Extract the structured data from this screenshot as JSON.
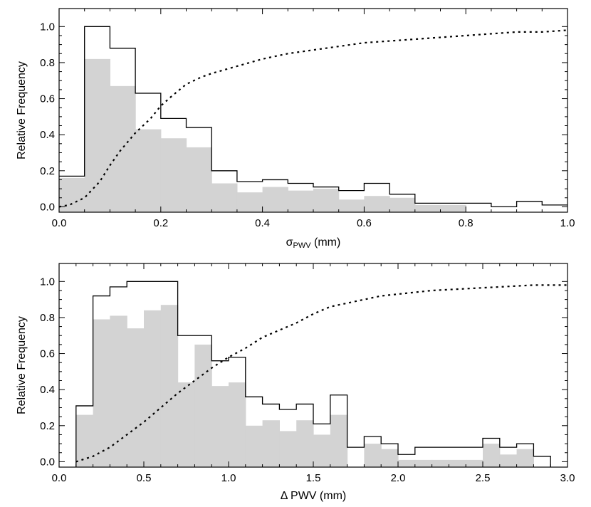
{
  "colors": {
    "fill": "#d3d3d3",
    "line": "#000000",
    "background": "#ffffff"
  },
  "chart_data": [
    {
      "type": "histogram",
      "xlabel": {
        "main": "σ",
        "sub": "PWV",
        "unit": "(mm)"
      },
      "ylabel": "Relative Frequency",
      "xlim": [
        0.0,
        1.0
      ],
      "ylim": [
        -0.03,
        1.1
      ],
      "xticks": [
        "0.0",
        "0.2",
        "0.4",
        "0.6",
        "0.8",
        "1.0"
      ],
      "yticks": [
        "0.0",
        "0.2",
        "0.4",
        "0.6",
        "0.8",
        "1.0"
      ],
      "bin_edges": [
        0.0,
        0.05,
        0.1,
        0.15,
        0.2,
        0.25,
        0.3,
        0.35,
        0.4,
        0.45,
        0.5,
        0.55,
        0.6,
        0.65,
        0.7,
        0.75,
        0.8,
        0.85,
        0.9,
        0.95,
        1.0
      ],
      "series": [
        {
          "style": "outline",
          "values": [
            0.17,
            1.0,
            0.88,
            0.63,
            0.49,
            0.44,
            0.2,
            0.14,
            0.15,
            0.13,
            0.11,
            0.09,
            0.13,
            0.07,
            0.02,
            0.02,
            0.02,
            0.0,
            0.03,
            0.01
          ]
        },
        {
          "style": "filled",
          "values": [
            0.16,
            0.82,
            0.67,
            0.43,
            0.38,
            0.33,
            0.13,
            0.08,
            0.11,
            0.09,
            0.1,
            0.04,
            0.06,
            0.05,
            0.01,
            0.01,
            0.0,
            0.0,
            0.0,
            0.0
          ]
        }
      ],
      "cumulative": {
        "style": "dotted",
        "x": [
          0.0,
          0.02,
          0.05,
          0.08,
          0.1,
          0.12,
          0.15,
          0.18,
          0.2,
          0.22,
          0.25,
          0.28,
          0.3,
          0.35,
          0.4,
          0.45,
          0.5,
          0.55,
          0.6,
          0.65,
          0.7,
          0.75,
          0.8,
          0.85,
          0.9,
          0.95,
          1.0
        ],
        "y": [
          0.0,
          0.01,
          0.05,
          0.14,
          0.23,
          0.31,
          0.41,
          0.49,
          0.56,
          0.61,
          0.68,
          0.72,
          0.74,
          0.78,
          0.82,
          0.85,
          0.87,
          0.89,
          0.91,
          0.92,
          0.93,
          0.94,
          0.95,
          0.96,
          0.97,
          0.97,
          0.98
        ]
      }
    },
    {
      "type": "histogram",
      "xlabel": {
        "main": "Δ PWV",
        "sub": "",
        "unit": "(mm)"
      },
      "ylabel": "Relative Frequency",
      "xlim": [
        0.0,
        3.0
      ],
      "ylim": [
        -0.03,
        1.1
      ],
      "xticks": [
        "0.0",
        "0.5",
        "1.0",
        "1.5",
        "2.0",
        "2.5",
        "3.0"
      ],
      "yticks": [
        "0.0",
        "0.2",
        "0.4",
        "0.6",
        "0.8",
        "1.0"
      ],
      "bin_edges": [
        0.1,
        0.2,
        0.3,
        0.4,
        0.5,
        0.6,
        0.7,
        0.8,
        0.9,
        1.0,
        1.1,
        1.2,
        1.3,
        1.4,
        1.5,
        1.6,
        1.7,
        1.8,
        1.9,
        2.0,
        2.1,
        2.2,
        2.3,
        2.4,
        2.5,
        2.6,
        2.7,
        2.8,
        2.9
      ],
      "series": [
        {
          "style": "outline",
          "values": [
            0.31,
            0.92,
            0.97,
            1.0,
            1.0,
            1.0,
            0.7,
            0.7,
            0.56,
            0.58,
            0.36,
            0.32,
            0.29,
            0.32,
            0.21,
            0.37,
            0.08,
            0.14,
            0.1,
            0.04,
            0.08,
            0.08,
            0.08,
            0.08,
            0.13,
            0.08,
            0.1,
            0.03
          ]
        },
        {
          "style": "filled",
          "values": [
            0.26,
            0.79,
            0.81,
            0.74,
            0.84,
            0.87,
            0.44,
            0.65,
            0.42,
            0.44,
            0.2,
            0.23,
            0.17,
            0.23,
            0.15,
            0.26,
            0.0,
            0.1,
            0.07,
            0.01,
            0.01,
            0.01,
            0.01,
            0.01,
            0.1,
            0.04,
            0.07,
            0.0
          ]
        }
      ],
      "cumulative": {
        "style": "dotted",
        "x": [
          0.1,
          0.2,
          0.3,
          0.4,
          0.5,
          0.6,
          0.7,
          0.8,
          0.9,
          1.0,
          1.1,
          1.2,
          1.3,
          1.4,
          1.5,
          1.6,
          1.7,
          1.8,
          1.9,
          2.0,
          2.2,
          2.4,
          2.6,
          2.8,
          3.0
        ],
        "y": [
          0.0,
          0.03,
          0.08,
          0.15,
          0.22,
          0.3,
          0.38,
          0.45,
          0.52,
          0.58,
          0.63,
          0.69,
          0.73,
          0.77,
          0.82,
          0.86,
          0.88,
          0.9,
          0.92,
          0.93,
          0.95,
          0.96,
          0.97,
          0.98,
          0.98
        ]
      }
    }
  ]
}
